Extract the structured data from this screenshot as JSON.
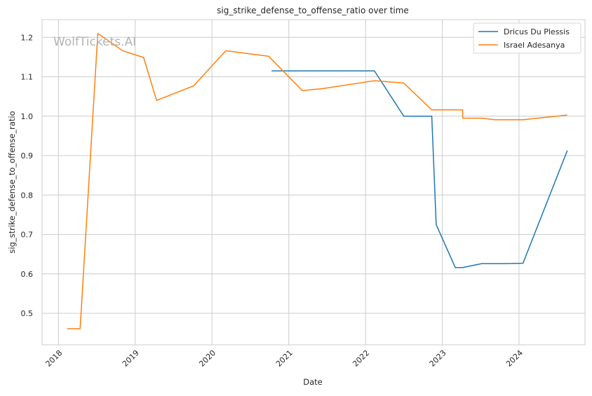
{
  "chart_data": {
    "type": "line",
    "title": "sig_strike_defense_to_offense_ratio over time",
    "xlabel": "Date",
    "ylabel": "sig_strike_defense_to_offense_ratio",
    "watermark": "WolfTickets.AI",
    "x_ticks": [
      "2018",
      "2019",
      "2020",
      "2021",
      "2022",
      "2023",
      "2024"
    ],
    "y_ticks": [
      "0.5",
      "0.6",
      "0.7",
      "0.8",
      "0.9",
      "1.0",
      "1.1",
      "1.2"
    ],
    "xlim": [
      "2017-10-15",
      "2024-11-10"
    ],
    "ylim": [
      0.42,
      1.245
    ],
    "grid": true,
    "legend_position": "top-right",
    "series": [
      {
        "name": "Dricus Du Plessis",
        "color": "#1f77b4",
        "points": [
          [
            "2020-10-11",
            1.115
          ],
          [
            "2022-02-12",
            1.115
          ],
          [
            "2022-07-02",
            1.0
          ],
          [
            "2022-11-12",
            1.0
          ],
          [
            "2022-12-03",
            0.725
          ],
          [
            "2023-03-04",
            0.616
          ],
          [
            "2023-04-08",
            0.616
          ],
          [
            "2023-07-08",
            0.626
          ],
          [
            "2023-10-21",
            0.626
          ],
          [
            "2024-01-20",
            0.627
          ],
          [
            "2024-08-18",
            0.913
          ]
        ]
      },
      {
        "name": "Israel Adesanya",
        "color": "#ff7f0e",
        "points": [
          [
            "2018-02-11",
            0.461
          ],
          [
            "2018-04-14",
            0.461
          ],
          [
            "2018-07-07",
            1.21
          ],
          [
            "2018-11-03",
            1.166
          ],
          [
            "2019-02-10",
            1.149
          ],
          [
            "2019-04-13",
            1.04
          ],
          [
            "2019-10-06",
            1.077
          ],
          [
            "2020-03-07",
            1.166
          ],
          [
            "2020-09-27",
            1.152
          ],
          [
            "2021-03-06",
            1.065
          ],
          [
            "2021-06-12",
            1.07
          ],
          [
            "2022-02-12",
            1.09
          ],
          [
            "2022-07-02",
            1.084
          ],
          [
            "2022-11-12",
            1.016
          ],
          [
            "2023-04-08",
            1.016
          ],
          [
            "2023-04-08",
            0.995
          ],
          [
            "2023-07-08",
            0.995
          ],
          [
            "2023-09-09",
            0.991
          ],
          [
            "2024-01-20",
            0.991
          ],
          [
            "2024-08-18",
            1.003
          ]
        ]
      }
    ]
  }
}
